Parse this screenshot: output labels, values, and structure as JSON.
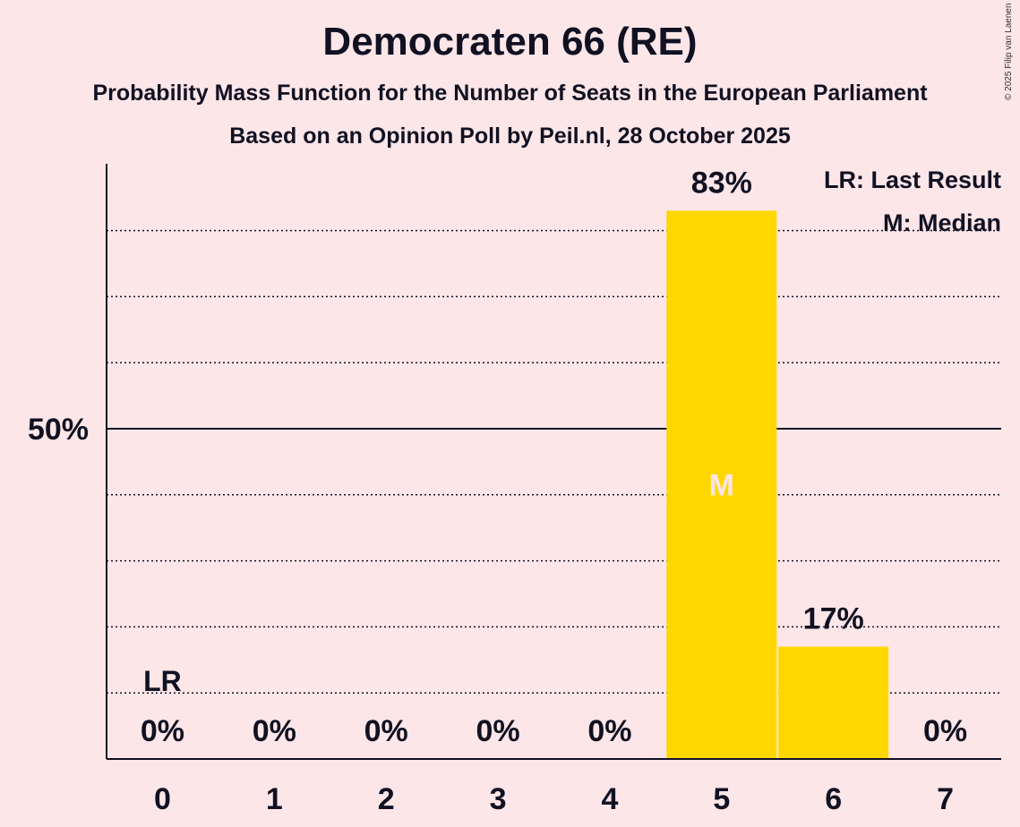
{
  "title": "Democraten 66 (RE)",
  "subtitle": "Probability Mass Function for the Number of Seats in the European Parliament",
  "source_line": "Based on an Opinion Poll by Peil.nl, 28 October 2025",
  "copyright": "© 2025 Filip van Laenen",
  "colors": {
    "bar": "#ffd700",
    "background": "#fce6e8",
    "text": "#111122",
    "median_marker": "#fce6e8"
  },
  "chart_data": {
    "type": "bar",
    "title": "Democraten 66 (RE)",
    "xlabel": "",
    "ylabel": "",
    "categories": [
      "0",
      "1",
      "2",
      "3",
      "4",
      "5",
      "6",
      "7"
    ],
    "values": [
      0,
      0,
      0,
      0,
      0,
      83,
      17,
      0
    ],
    "value_labels": [
      "0%",
      "0%",
      "0%",
      "0%",
      "0%",
      "83%",
      "17%",
      "0%"
    ],
    "ylim": [
      0,
      90
    ],
    "y_ticks": [
      {
        "value": 50,
        "label": "50%"
      }
    ],
    "gridlines": [
      10,
      20,
      30,
      40,
      60,
      70,
      80
    ],
    "median_seat": "5",
    "median_marker": "M",
    "last_result_seat": "0",
    "last_result_marker": "LR",
    "legend": [
      "LR: Last Result",
      "M: Median"
    ],
    "legend_position": "top-right"
  }
}
